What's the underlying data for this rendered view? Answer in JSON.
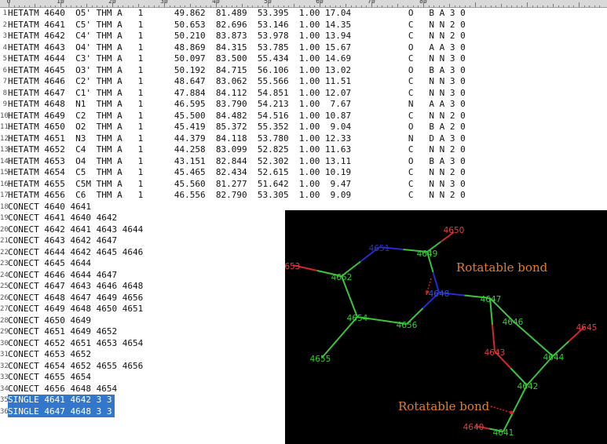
{
  "ruler": {
    "labels": [
      "0",
      "10",
      "20",
      "30",
      "40",
      "50",
      "60",
      "70",
      "80"
    ]
  },
  "editor": {
    "lines": [
      {
        "n": "1",
        "text": "HETATM 4640  O5' THM A   1      49.862  81.489  53.395  1.00 17.04           O   B A 3 0"
      },
      {
        "n": "2",
        "text": "HETATM 4641  C5' THM A   1      50.653  82.696  53.146  1.00 14.35           C   N N 2 0"
      },
      {
        "n": "3",
        "text": "HETATM 4642  C4' THM A   1      50.210  83.873  53.978  1.00 13.94           C   N N 2 0"
      },
      {
        "n": "4",
        "text": "HETATM 4643  O4' THM A   1      48.869  84.315  53.785  1.00 15.67           O   A A 3 0"
      },
      {
        "n": "5",
        "text": "HETATM 4644  C3' THM A   1      50.097  83.500  55.434  1.00 14.69           C   N N 3 0"
      },
      {
        "n": "6",
        "text": "HETATM 4645  O3' THM A   1      50.192  84.715  56.106  1.00 13.02           O   B A 3 0"
      },
      {
        "n": "7",
        "text": "HETATM 4646  C2' THM A   1      48.647  83.062  55.566  1.00 11.51           C   N N 3 0"
      },
      {
        "n": "8",
        "text": "HETATM 4647  C1' THM A   1      47.884  84.112  54.851  1.00 12.07           C   N N 3 0"
      },
      {
        "n": "9",
        "text": "HETATM 4648  N1  THM A   1      46.595  83.790  54.213  1.00  7.67           N   A A 3 0"
      },
      {
        "n": "10",
        "text": "HETATM 4649  C2  THM A   1      45.500  84.482  54.516  1.00 10.87           C   N N 2 0"
      },
      {
        "n": "11",
        "text": "HETATM 4650  O2  THM A   1      45.419  85.372  55.352  1.00  9.04           O   B A 2 0"
      },
      {
        "n": "12",
        "text": "HETATM 4651  N3  THM A   1      44.379  84.118  53.780  1.00 12.33           N   D A 3 0"
      },
      {
        "n": "13",
        "text": "HETATM 4652  C4  THM A   1      44.258  83.099  52.825  1.00 11.63           C   N N 2 0"
      },
      {
        "n": "14",
        "text": "HETATM 4653  O4  THM A   1      43.151  82.844  52.302  1.00 13.11           O   B A 3 0"
      },
      {
        "n": "15",
        "text": "HETATM 4654  C5  THM A   1      45.465  82.434  52.615  1.00 10.19           C   N N 2 0"
      },
      {
        "n": "16",
        "text": "HETATM 4655  C5M THM A   1      45.560  81.277  51.642  1.00  9.47           C   N N 3 0"
      },
      {
        "n": "17",
        "text": "HETATM 4656  C6  THM A   1      46.556  82.790  53.305  1.00  9.09           C   N N 2 0"
      },
      {
        "n": "18",
        "text": "CONECT 4640 4641"
      },
      {
        "n": "19",
        "text": "CONECT 4641 4640 4642"
      },
      {
        "n": "20",
        "text": "CONECT 4642 4641 4643 4644"
      },
      {
        "n": "21",
        "text": "CONECT 4643 4642 4647"
      },
      {
        "n": "22",
        "text": "CONECT 4644 4642 4645 4646"
      },
      {
        "n": "23",
        "text": "CONECT 4645 4644"
      },
      {
        "n": "24",
        "text": "CONECT 4646 4644 4647"
      },
      {
        "n": "25",
        "text": "CONECT 4647 4643 4646 4648"
      },
      {
        "n": "26",
        "text": "CONECT 4648 4647 4649 4656"
      },
      {
        "n": "27",
        "text": "CONECT 4649 4648 4650 4651"
      },
      {
        "n": "28",
        "text": "CONECT 4650 4649"
      },
      {
        "n": "29",
        "text": "CONECT 4651 4649 4652"
      },
      {
        "n": "30",
        "text": "CONECT 4652 4651 4653 4654"
      },
      {
        "n": "31",
        "text": "CONECT 4653 4652"
      },
      {
        "n": "32",
        "text": "CONECT 4654 4652 4655 4656"
      },
      {
        "n": "33",
        "text": "CONECT 4655 4654"
      },
      {
        "n": "34",
        "text": "CONECT 4656 4648 4654"
      },
      {
        "n": "35",
        "text": "SINGLE 4641 4642 3 3",
        "selected": true
      },
      {
        "n": "36",
        "text": "SINGLE 4647 4648 3 3",
        "selected": true
      }
    ]
  },
  "molecule": {
    "atoms": [
      {
        "id": "4650",
        "label": "4650",
        "color": "#e04040"
      },
      {
        "id": "4651",
        "label": "4651",
        "color": "#3030c0"
      },
      {
        "id": "4649",
        "label": "4649",
        "color": "#30d030"
      },
      {
        "id": "4653",
        "label": "4653",
        "color": "#e04040"
      },
      {
        "id": "4652",
        "label": "4652",
        "color": "#30d030"
      },
      {
        "id": "4648",
        "label": "4648",
        "color": "#3050e0"
      },
      {
        "id": "4647",
        "label": "4647",
        "color": "#30d030"
      },
      {
        "id": "4646",
        "label": "4646",
        "color": "#30d030"
      },
      {
        "id": "4645",
        "label": "4645",
        "color": "#e04040"
      },
      {
        "id": "4654",
        "label": "4654",
        "color": "#30d030"
      },
      {
        "id": "4656",
        "label": "4656",
        "color": "#30d030"
      },
      {
        "id": "4643",
        "label": "4643",
        "color": "#e04040"
      },
      {
        "id": "4644",
        "label": "4644",
        "color": "#30d030"
      },
      {
        "id": "4655",
        "label": "4655",
        "color": "#30d030"
      },
      {
        "id": "4642",
        "label": "4642",
        "color": "#30d030"
      },
      {
        "id": "4640",
        "label": "4640",
        "color": "#e04040"
      },
      {
        "id": "4641",
        "label": "4641",
        "color": "#30d030"
      }
    ],
    "annotations": [
      {
        "id": "top",
        "text": "Rotatable bond"
      },
      {
        "id": "bottom",
        "text": "Rotatable bond"
      }
    ],
    "colors": {
      "carbon": "#3dc43d",
      "nitrogen": "#2a2ad0",
      "oxygen": "#cc2a2a",
      "annotation": "#e67e22",
      "arrow": "#e02020"
    }
  }
}
